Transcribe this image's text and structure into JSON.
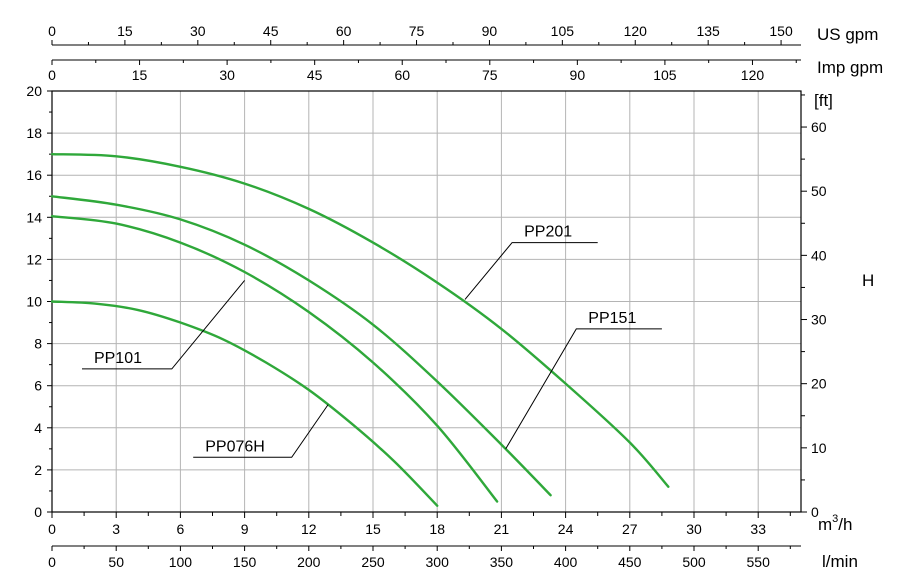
{
  "chart_data": {
    "type": "line",
    "x_primary": {
      "unit": "m3/h",
      "unit_base": "m",
      "unit_exp": "3",
      "unit_tail": "/h",
      "ticks": [
        0,
        3,
        6,
        9,
        12,
        15,
        18,
        21,
        24,
        27,
        30,
        33
      ],
      "range": [
        0,
        35
      ]
    },
    "x_lmin": {
      "unit": "l/min",
      "ticks": [
        0,
        50,
        100,
        150,
        200,
        250,
        300,
        350,
        400,
        450,
        500,
        550
      ]
    },
    "x_usgpm": {
      "unit": "US gpm",
      "ticks": [
        0,
        15,
        30,
        45,
        60,
        75,
        90,
        105,
        120,
        135,
        150
      ]
    },
    "x_impgpm": {
      "unit": "Imp gpm",
      "ticks": [
        0,
        15,
        30,
        45,
        60,
        75,
        90,
        105,
        120
      ]
    },
    "y_left": {
      "ticks": [
        0,
        2,
        4,
        6,
        8,
        10,
        12,
        14,
        16,
        18,
        20
      ],
      "range": [
        0,
        20
      ]
    },
    "y_right": {
      "unit": "[ft]",
      "ticks": [
        0,
        10,
        20,
        30,
        40,
        50,
        60
      ],
      "axis_title": "H"
    },
    "grid": true,
    "line_color": "#2fa83a",
    "series": [
      {
        "name": "PP076H",
        "points": [
          [
            0,
            10.0
          ],
          [
            2,
            9.9
          ],
          [
            4,
            9.6
          ],
          [
            6,
            9.0
          ],
          [
            8,
            8.2
          ],
          [
            10,
            7.1
          ],
          [
            12,
            5.8
          ],
          [
            14,
            4.2
          ],
          [
            16,
            2.4
          ],
          [
            18,
            0.3
          ]
        ]
      },
      {
        "name": "PP101",
        "points": [
          [
            0,
            14.05
          ],
          [
            3,
            13.7
          ],
          [
            6,
            12.8
          ],
          [
            9,
            11.4
          ],
          [
            12,
            9.5
          ],
          [
            15,
            7.1
          ],
          [
            18,
            4.1
          ],
          [
            20.8,
            0.5
          ]
        ]
      },
      {
        "name": "PP151",
        "points": [
          [
            0,
            15.0
          ],
          [
            3,
            14.6
          ],
          [
            6,
            13.9
          ],
          [
            9,
            12.7
          ],
          [
            12,
            11.0
          ],
          [
            15,
            8.9
          ],
          [
            18,
            6.2
          ],
          [
            21,
            3.2
          ],
          [
            23.3,
            0.8
          ]
        ]
      },
      {
        "name": "PP201",
        "points": [
          [
            0,
            17.0
          ],
          [
            3,
            16.9
          ],
          [
            6,
            16.4
          ],
          [
            9,
            15.6
          ],
          [
            12,
            14.4
          ],
          [
            15,
            12.8
          ],
          [
            18,
            10.9
          ],
          [
            21,
            8.7
          ],
          [
            24,
            6.1
          ],
          [
            27,
            3.3
          ],
          [
            28.8,
            1.2
          ]
        ]
      }
    ],
    "callouts": [
      {
        "series": "PP201",
        "text": "PP201",
        "anchor": [
          19.3,
          10.1
        ],
        "elbow": [
          21.5,
          12.8
        ],
        "end": [
          25.5,
          12.8
        ]
      },
      {
        "series": "PP151",
        "text": "PP151",
        "anchor": [
          21.2,
          3.0
        ],
        "elbow": [
          24.5,
          8.7
        ],
        "end": [
          28.5,
          8.7
        ]
      },
      {
        "series": "PP101",
        "text": "PP101",
        "anchor": [
          9.0,
          11.0
        ],
        "elbow": [
          5.6,
          6.8
        ],
        "end": [
          1.4,
          6.8
        ]
      },
      {
        "series": "PP076H",
        "text": "PP076H",
        "anchor": [
          12.9,
          5.1
        ],
        "elbow": [
          11.2,
          2.6
        ],
        "end": [
          6.6,
          2.6
        ]
      }
    ]
  }
}
